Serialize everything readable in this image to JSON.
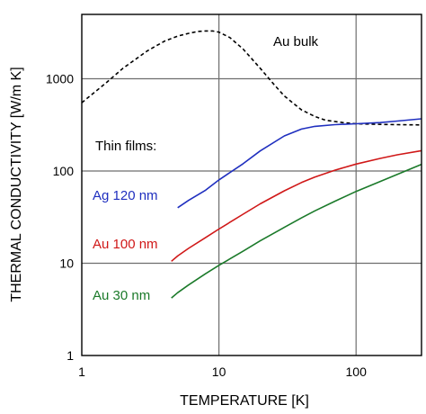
{
  "chart_data": {
    "type": "line",
    "xlabel": "TEMPERATURE [K]",
    "ylabel": "THERMAL CONDUCTIVITY [W/m K]",
    "xscale": "log",
    "yscale": "log",
    "xlim": [
      1,
      300
    ],
    "ylim": [
      1,
      5000
    ],
    "grid": "vertical and horizontal lines at major decades",
    "x_ticks": [
      "1",
      "10",
      "100"
    ],
    "y_ticks": [
      "1",
      "10",
      "100",
      "1000"
    ],
    "annotations": [
      {
        "id": "thin-films",
        "text": "Thin films:",
        "color": "#000000"
      }
    ],
    "series": [
      {
        "name": "Au bulk",
        "color": "#000000",
        "style": "dashed",
        "points": [
          [
            1,
            550
          ],
          [
            1.5,
            900
          ],
          [
            2,
            1300
          ],
          [
            3,
            2000
          ],
          [
            4,
            2550
          ],
          [
            5,
            2900
          ],
          [
            6,
            3100
          ],
          [
            7,
            3250
          ],
          [
            8,
            3300
          ],
          [
            9,
            3300
          ],
          [
            10,
            3200
          ],
          [
            12,
            2800
          ],
          [
            15,
            2100
          ],
          [
            20,
            1300
          ],
          [
            25,
            880
          ],
          [
            30,
            650
          ],
          [
            40,
            460
          ],
          [
            50,
            390
          ],
          [
            60,
            355
          ],
          [
            80,
            335
          ],
          [
            100,
            325
          ],
          [
            150,
            320
          ],
          [
            200,
            318
          ],
          [
            300,
            316
          ]
        ]
      },
      {
        "name": "Ag 120 nm",
        "color": "#1f2fbf",
        "style": "solid",
        "points": [
          [
            5,
            40
          ],
          [
            6,
            48
          ],
          [
            8,
            62
          ],
          [
            10,
            80
          ],
          [
            15,
            120
          ],
          [
            20,
            165
          ],
          [
            30,
            240
          ],
          [
            40,
            285
          ],
          [
            50,
            305
          ],
          [
            70,
            318
          ],
          [
            100,
            325
          ],
          [
            150,
            335
          ],
          [
            200,
            348
          ],
          [
            300,
            368
          ]
        ]
      },
      {
        "name": "Au 100 nm",
        "color": "#d01818",
        "style": "solid",
        "points": [
          [
            4.5,
            10.5
          ],
          [
            5,
            12
          ],
          [
            6,
            14.5
          ],
          [
            8,
            19
          ],
          [
            10,
            23.5
          ],
          [
            15,
            34
          ],
          [
            20,
            44
          ],
          [
            30,
            61
          ],
          [
            40,
            75
          ],
          [
            50,
            86
          ],
          [
            70,
            102
          ],
          [
            100,
            119
          ],
          [
            150,
            137
          ],
          [
            200,
            150
          ],
          [
            300,
            166
          ]
        ]
      },
      {
        "name": "Au 30 nm",
        "color": "#1b7a2a",
        "style": "solid",
        "points": [
          [
            4.5,
            4.2
          ],
          [
            5,
            4.8
          ],
          [
            6,
            5.8
          ],
          [
            8,
            7.7
          ],
          [
            10,
            9.5
          ],
          [
            15,
            13.5
          ],
          [
            20,
            17.5
          ],
          [
            30,
            24.5
          ],
          [
            40,
            31
          ],
          [
            50,
            37
          ],
          [
            70,
            47
          ],
          [
            100,
            60
          ],
          [
            150,
            77
          ],
          [
            200,
            92
          ],
          [
            300,
            118
          ]
        ]
      }
    ]
  }
}
